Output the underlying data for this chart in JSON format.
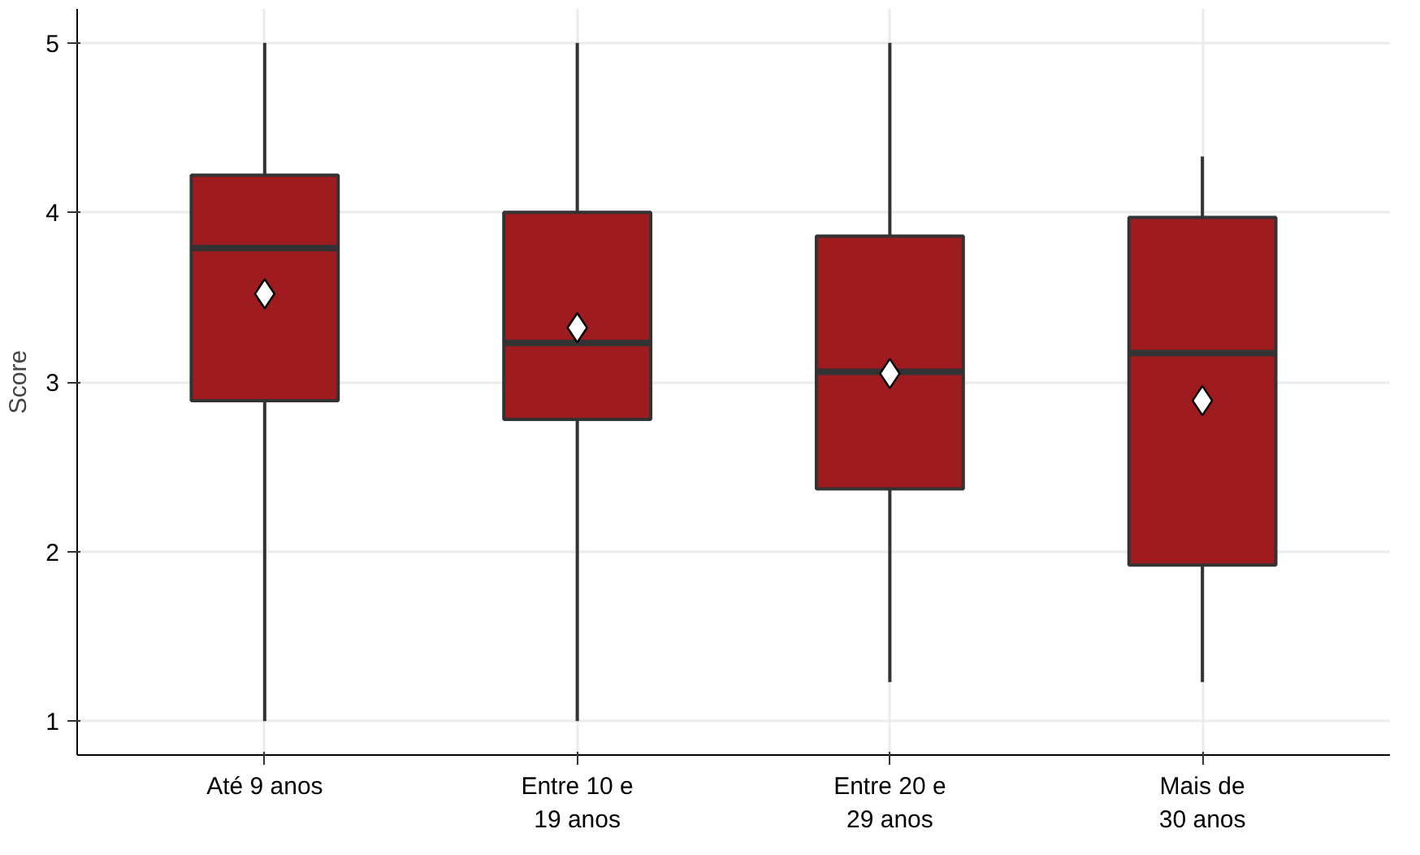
{
  "chart_data": {
    "type": "box",
    "ylabel": "Score",
    "categories": [
      "Até 9 anos",
      "Entre 10 e\n19 anos",
      "Entre 20 e\n29 anos",
      "Mais de\n30 anos"
    ],
    "color": "#9e1b20",
    "boxes": [
      {
        "low": 1,
        "q1": 2.89,
        "median": 3.79,
        "q3": 4.22,
        "high": 5,
        "mean": 3.52
      },
      {
        "low": 1,
        "q1": 2.78,
        "median": 3.23,
        "q3": 4.0,
        "high": 5,
        "mean": 3.32
      },
      {
        "low": 1.23,
        "q1": 2.37,
        "median": 3.06,
        "q3": 3.86,
        "high": 5,
        "mean": 3.05
      },
      {
        "low": 1.23,
        "q1": 1.92,
        "median": 3.17,
        "q3": 3.97,
        "high": 4.33,
        "mean": 2.89
      }
    ],
    "ylim": [
      0.8,
      5.2
    ],
    "yticks": [
      1,
      2,
      3,
      4,
      5
    ],
    "grid": true
  }
}
